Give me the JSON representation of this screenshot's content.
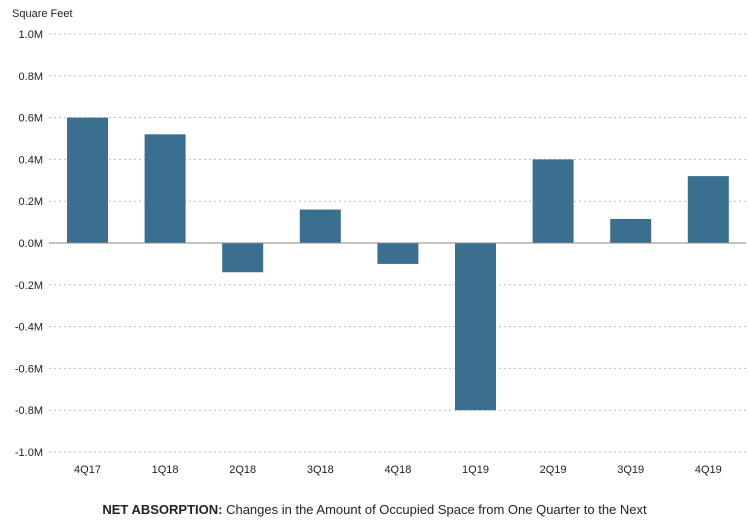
{
  "chart_data": {
    "type": "bar",
    "ylabel": "Square Feet",
    "categories": [
      "4Q17",
      "1Q18",
      "2Q18",
      "3Q18",
      "4Q18",
      "1Q19",
      "2Q19",
      "3Q19",
      "4Q19"
    ],
    "values": [
      0.6,
      0.52,
      -0.14,
      0.16,
      -0.1,
      -0.8,
      0.4,
      0.115,
      0.32
    ],
    "ylim": [
      -1.0,
      1.0
    ],
    "yticks": [
      1.0,
      0.8,
      0.6,
      0.4,
      0.2,
      0.0,
      -0.2,
      -0.4,
      -0.6,
      -0.8,
      -1.0
    ],
    "ytick_labels": [
      "1.0M",
      "0.8M",
      "0.6M",
      "0.4M",
      "0.2M",
      "0.0M",
      "-0.2M",
      "-0.4M",
      "-0.6M",
      "-0.8M",
      "-1.0M"
    ],
    "grid": true,
    "bar_color": "#3a6f8f"
  },
  "caption": {
    "bold": "NET ABSORPTION:",
    "text": " Changes in the Amount of Occupied Space from One Quarter to the Next"
  }
}
